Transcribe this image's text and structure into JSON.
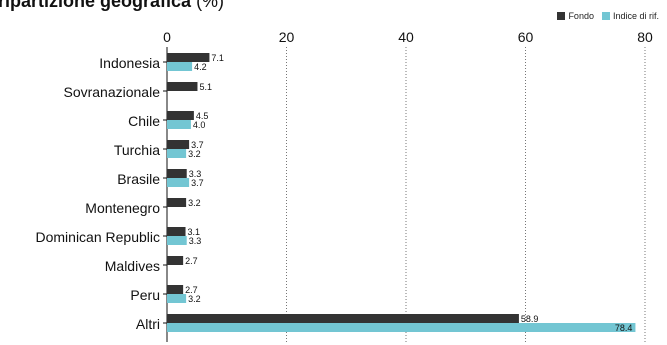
{
  "chart_data": {
    "type": "bar",
    "orientation": "horizontal",
    "title": "ripartizione geografica",
    "title_unit": "(%)",
    "categories": [
      "Indonesia",
      "Sovranazionale",
      "Chile",
      "Turchia",
      "Brasile",
      "Montenegro",
      "Dominican Republic",
      "Maldives",
      "Peru",
      "Altri"
    ],
    "series": [
      {
        "name": "Fondo",
        "color": "#333333",
        "values": [
          7.1,
          5.1,
          4.5,
          3.7,
          3.3,
          3.2,
          3.1,
          2.7,
          2.7,
          58.9
        ]
      },
      {
        "name": "Indice di rif.",
        "color": "#73c6d3",
        "values": [
          4.2,
          null,
          4.0,
          3.2,
          3.7,
          null,
          3.3,
          null,
          3.2,
          78.4
        ]
      }
    ],
    "value_labels": [
      [
        "7.1",
        "5.1",
        "4.5",
        "3.7",
        "3.3",
        "3.2",
        "3.1",
        "2.7",
        "2.7",
        "58.9"
      ],
      [
        "4.2",
        null,
        "4.0",
        "3.2",
        "3.7",
        null,
        "3.3",
        null,
        "3.2",
        "78.4"
      ]
    ],
    "xlim": [
      0,
      80
    ],
    "xticks": [
      0,
      20,
      40,
      60,
      80
    ],
    "xtick_labels": [
      "0",
      "20",
      "40",
      "60",
      "80"
    ],
    "grid": "vertical-dotted",
    "legend": "top-right"
  }
}
